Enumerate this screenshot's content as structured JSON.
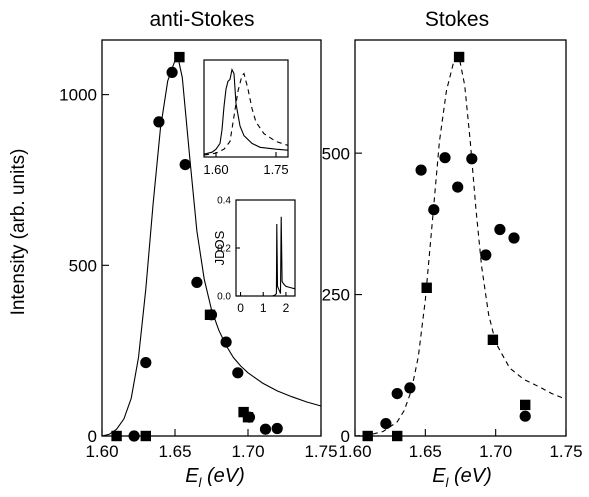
{
  "figure": {
    "ylabel": "Intensity (arb. units)"
  },
  "chart_data": [
    {
      "type": "scatter",
      "title": "anti-Stokes",
      "xlabel_symbol": "E",
      "xlabel_sub": "l",
      "xlabel_unit": " (eV)",
      "xlim": [
        1.6,
        1.75
      ],
      "ylim": [
        0,
        1160
      ],
      "xticks": [
        "1.60",
        "1.65",
        "1.70",
        "1.75"
      ],
      "xtick_values": [
        1.6,
        1.65,
        1.7,
        1.75
      ],
      "yticks": [
        "0",
        "500",
        "1000"
      ],
      "ytick_values": [
        0,
        500,
        1000
      ],
      "series": [
        {
          "marker": "circle",
          "points": [
            [
              1.622,
              0
            ],
            [
              1.63,
              215
            ],
            [
              1.639,
              920
            ],
            [
              1.648,
              1065
            ],
            [
              1.657,
              795
            ],
            [
              1.665,
              450
            ],
            [
              1.675,
              355
            ],
            [
              1.685,
              275
            ],
            [
              1.693,
              185
            ],
            [
              1.701,
              55
            ],
            [
              1.712,
              20
            ],
            [
              1.72,
              22
            ]
          ]
        },
        {
          "marker": "square",
          "points": [
            [
              1.61,
              0
            ],
            [
              1.63,
              0
            ],
            [
              1.653,
              1110
            ],
            [
              1.674,
              355
            ],
            [
              1.697,
              70
            ],
            [
              1.7,
              55
            ]
          ]
        },
        {
          "style": "solid",
          "points": [
            [
              1.6,
              0
            ],
            [
              1.605,
              5
            ],
            [
              1.61,
              20
            ],
            [
              1.615,
              50
            ],
            [
              1.62,
              110
            ],
            [
              1.625,
              230
            ],
            [
              1.63,
              430
            ],
            [
              1.635,
              680
            ],
            [
              1.64,
              900
            ],
            [
              1.645,
              1040
            ],
            [
              1.65,
              1100
            ],
            [
              1.652,
              1110
            ],
            [
              1.655,
              1050
            ],
            [
              1.66,
              820
            ],
            [
              1.665,
              600
            ],
            [
              1.67,
              460
            ],
            [
              1.675,
              370
            ],
            [
              1.68,
              310
            ],
            [
              1.685,
              265
            ],
            [
              1.69,
              230
            ],
            [
              1.695,
              205
            ],
            [
              1.7,
              185
            ],
            [
              1.71,
              155
            ],
            [
              1.72,
              132
            ],
            [
              1.73,
              115
            ],
            [
              1.74,
              100
            ],
            [
              1.75,
              88
            ]
          ]
        }
      ],
      "inset_top": {
        "xticks": [
          "1.60",
          "1.75"
        ],
        "xtick_values": [
          1.6,
          1.75
        ],
        "xlim": [
          1.57,
          1.78
        ],
        "ylim": [
          0,
          1
        ],
        "series": [
          {
            "style": "solid",
            "points": [
              [
                1.57,
                0.03
              ],
              [
                1.59,
                0.05
              ],
              [
                1.6,
                0.08
              ],
              [
                1.61,
                0.14
              ],
              [
                1.615,
                0.28
              ],
              [
                1.62,
                0.52
              ],
              [
                1.625,
                0.7
              ],
              [
                1.63,
                0.78
              ],
              [
                1.635,
                0.8
              ],
              [
                1.64,
                0.9
              ],
              [
                1.645,
                0.86
              ],
              [
                1.65,
                0.55
              ],
              [
                1.66,
                0.32
              ],
              [
                1.67,
                0.22
              ],
              [
                1.69,
                0.14
              ],
              [
                1.71,
                0.1
              ],
              [
                1.75,
                0.08
              ],
              [
                1.78,
                0.07
              ]
            ]
          },
          {
            "style": "dashed",
            "points": [
              [
                1.57,
                0.02
              ],
              [
                1.6,
                0.04
              ],
              [
                1.62,
                0.08
              ],
              [
                1.635,
                0.16
              ],
              [
                1.645,
                0.42
              ],
              [
                1.655,
                0.68
              ],
              [
                1.665,
                0.84
              ],
              [
                1.67,
                0.86
              ],
              [
                1.68,
                0.7
              ],
              [
                1.69,
                0.5
              ],
              [
                1.7,
                0.36
              ],
              [
                1.72,
                0.24
              ],
              [
                1.75,
                0.16
              ],
              [
                1.78,
                0.12
              ]
            ]
          }
        ]
      },
      "inset_bottom": {
        "ylabel": "JDOS",
        "xticks": [
          "0",
          "1",
          "2"
        ],
        "xtick_values": [
          0,
          1,
          2
        ],
        "yticks": [
          "0.0",
          "0.2",
          "0.4"
        ],
        "ytick_values": [
          0.0,
          0.2,
          0.4
        ],
        "xlim": [
          -0.2,
          2.4
        ],
        "ylim": [
          0,
          0.4
        ],
        "series": [
          {
            "style": "solid",
            "points": [
              [
                -0.2,
                0.0
              ],
              [
                1.4,
                0.0
              ],
              [
                1.5,
                0.003
              ],
              [
                1.58,
                0.01
              ],
              [
                1.6,
                0.3
              ],
              [
                1.63,
                0.04
              ],
              [
                1.72,
                0.02
              ],
              [
                1.76,
                0.01
              ],
              [
                1.79,
                0.33
              ],
              [
                1.83,
                0.06
              ],
              [
                1.9,
                0.05
              ],
              [
                2.0,
                0.04
              ],
              [
                2.2,
                0.035
              ],
              [
                2.4,
                0.03
              ]
            ]
          }
        ]
      }
    },
    {
      "type": "scatter",
      "title": "Stokes",
      "xlabel_symbol": "E",
      "xlabel_sub": "l",
      "xlabel_unit": " (eV)",
      "xlim": [
        1.6,
        1.75
      ],
      "ylim": [
        0,
        700
      ],
      "xticks": [
        "1.60",
        "1.65",
        "1.70",
        "1.75"
      ],
      "xtick_values": [
        1.6,
        1.65,
        1.7,
        1.75
      ],
      "yticks": [
        "0",
        "250",
        "500"
      ],
      "ytick_values": [
        0,
        250,
        500
      ],
      "series": [
        {
          "marker": "circle",
          "points": [
            [
              1.622,
              22
            ],
            [
              1.63,
              75
            ],
            [
              1.639,
              85
            ],
            [
              1.647,
              470
            ],
            [
              1.656,
              400
            ],
            [
              1.664,
              492
            ],
            [
              1.673,
              440
            ],
            [
              1.683,
              490
            ],
            [
              1.693,
              320
            ],
            [
              1.703,
              365
            ],
            [
              1.713,
              350
            ],
            [
              1.721,
              35
            ]
          ]
        },
        {
          "marker": "square",
          "points": [
            [
              1.609,
              0
            ],
            [
              1.63,
              0
            ],
            [
              1.651,
              262
            ],
            [
              1.674,
              670
            ],
            [
              1.698,
              170
            ],
            [
              1.721,
              55
            ]
          ]
        },
        {
          "style": "dashed",
          "points": [
            [
              1.6,
              0
            ],
            [
              1.61,
              2
            ],
            [
              1.62,
              8
            ],
            [
              1.63,
              25
            ],
            [
              1.635,
              45
            ],
            [
              1.64,
              80
            ],
            [
              1.645,
              140
            ],
            [
              1.65,
              240
            ],
            [
              1.655,
              380
            ],
            [
              1.66,
              520
            ],
            [
              1.665,
              610
            ],
            [
              1.67,
              660
            ],
            [
              1.674,
              670
            ],
            [
              1.678,
              620
            ],
            [
              1.682,
              520
            ],
            [
              1.686,
              400
            ],
            [
              1.69,
              300
            ],
            [
              1.695,
              215
            ],
            [
              1.7,
              165
            ],
            [
              1.71,
              120
            ],
            [
              1.72,
              100
            ],
            [
              1.73,
              88
            ],
            [
              1.74,
              75
            ],
            [
              1.75,
              65
            ]
          ]
        }
      ]
    }
  ]
}
